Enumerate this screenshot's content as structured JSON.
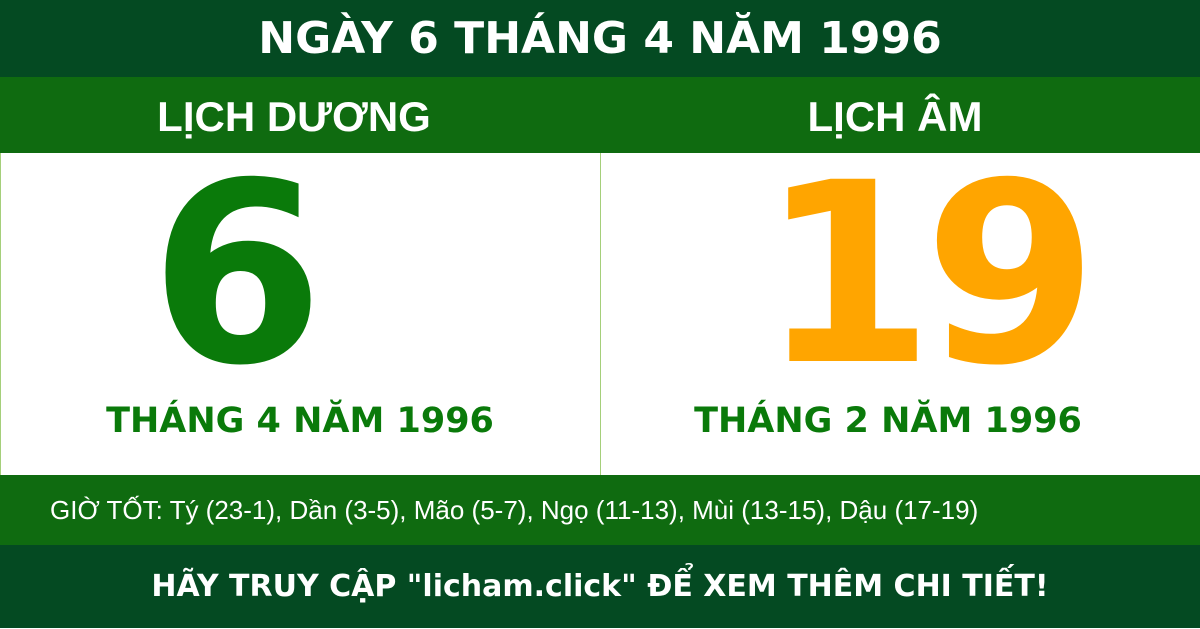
{
  "title": "NGÀY 6 THÁNG 4 NĂM 1996",
  "solar": {
    "label": "LỊCH DƯƠNG",
    "day": "6",
    "month_year": "THÁNG 4 NĂM 1996"
  },
  "lunar": {
    "label": "LỊCH ÂM",
    "day": "19",
    "month_year": "THÁNG 2 NĂM 1996"
  },
  "good_hours": "GIỜ TỐT: Tý (23-1), Dần (3-5), Mão (5-7), Ngọ (11-13), Mùi (13-15), Dậu (17-19)",
  "footer": "HÃY TRUY CẬP \"licham.click\" ĐỂ XEM THÊM CHI TIẾT!",
  "colors": {
    "dark_green": "#044a22",
    "green": "#0f6b10",
    "solar_number": "#0a7a0a",
    "lunar_number": "#ffa500"
  }
}
